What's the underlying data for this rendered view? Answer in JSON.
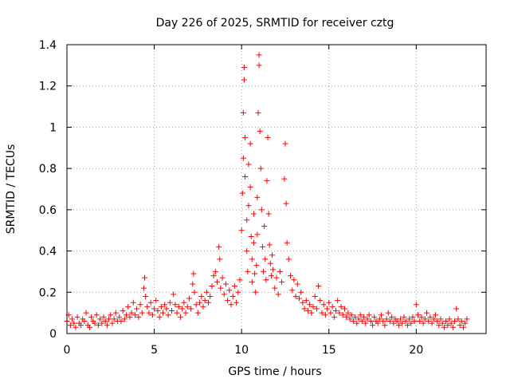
{
  "chart_data": {
    "type": "scatter",
    "title": "Day 226 of 2025, SRMTID for receiver cztg",
    "xlabel": "GPS time / hours",
    "ylabel": "SRMTID / TECUs",
    "xlim": [
      0,
      24
    ],
    "ylim": [
      0,
      1.4
    ],
    "xticks": [
      0,
      5,
      10,
      15,
      20
    ],
    "xtick_labels": [
      "0",
      "5",
      "10",
      "15",
      "20"
    ],
    "yticks": [
      0,
      0.2,
      0.4,
      0.6,
      0.8,
      1.0,
      1.2,
      1.4
    ],
    "ytick_labels": [
      "0",
      "0.2",
      "0.4",
      "0.6",
      "0.8",
      "1",
      "1.2",
      "1.4"
    ],
    "grid": true,
    "marker": "+",
    "color": "#ff0000",
    "series": [
      {
        "name": "SRMTID",
        "points": [
          [
            0.0,
            0.06
          ],
          [
            0.1,
            0.09
          ],
          [
            0.2,
            0.04
          ],
          [
            0.3,
            0.07
          ],
          [
            0.4,
            0.05
          ],
          [
            0.5,
            0.03
          ],
          [
            0.6,
            0.08
          ],
          [
            0.7,
            0.05
          ],
          [
            0.8,
            0.04
          ],
          [
            0.9,
            0.07
          ],
          [
            1.0,
            0.06
          ],
          [
            1.1,
            0.1
          ],
          [
            1.2,
            0.04
          ],
          [
            1.3,
            0.03
          ],
          [
            1.4,
            0.08
          ],
          [
            1.5,
            0.06
          ],
          [
            1.6,
            0.05
          ],
          [
            1.7,
            0.09
          ],
          [
            1.8,
            0.04
          ],
          [
            1.9,
            0.07
          ],
          [
            2.0,
            0.05
          ],
          [
            2.1,
            0.08
          ],
          [
            2.2,
            0.06
          ],
          [
            2.3,
            0.04
          ],
          [
            2.4,
            0.07
          ],
          [
            2.5,
            0.09
          ],
          [
            2.6,
            0.05
          ],
          [
            2.7,
            0.07
          ],
          [
            2.8,
            0.1
          ],
          [
            2.9,
            0.06
          ],
          [
            3.0,
            0.08
          ],
          [
            3.1,
            0.06
          ],
          [
            3.2,
            0.11
          ],
          [
            3.3,
            0.07
          ],
          [
            3.4,
            0.09
          ],
          [
            3.5,
            0.13
          ],
          [
            3.6,
            0.08
          ],
          [
            3.7,
            0.1
          ],
          [
            3.8,
            0.15
          ],
          [
            3.9,
            0.09
          ],
          [
            4.0,
            0.12
          ],
          [
            4.1,
            0.08
          ],
          [
            4.2,
            0.14
          ],
          [
            4.3,
            0.1
          ],
          [
            4.4,
            0.22
          ],
          [
            4.45,
            0.27
          ],
          [
            4.5,
            0.18
          ],
          [
            4.6,
            0.13
          ],
          [
            4.7,
            0.1
          ],
          [
            4.8,
            0.15
          ],
          [
            4.9,
            0.09
          ],
          [
            5.0,
            0.12
          ],
          [
            5.1,
            0.16
          ],
          [
            5.2,
            0.11
          ],
          [
            5.3,
            0.08
          ],
          [
            5.4,
            0.13
          ],
          [
            5.5,
            0.1
          ],
          [
            5.6,
            0.14
          ],
          [
            5.7,
            0.12
          ],
          [
            5.8,
            0.09
          ],
          [
            5.9,
            0.15
          ],
          [
            6.0,
            0.11
          ],
          [
            6.1,
            0.19
          ],
          [
            6.2,
            0.14
          ],
          [
            6.3,
            0.1
          ],
          [
            6.4,
            0.13
          ],
          [
            6.5,
            0.08
          ],
          [
            6.6,
            0.12
          ],
          [
            6.7,
            0.15
          ],
          [
            6.8,
            0.1
          ],
          [
            6.9,
            0.13
          ],
          [
            7.0,
            0.17
          ],
          [
            7.1,
            0.12
          ],
          [
            7.2,
            0.24
          ],
          [
            7.25,
            0.29
          ],
          [
            7.3,
            0.2
          ],
          [
            7.4,
            0.14
          ],
          [
            7.5,
            0.1
          ],
          [
            7.6,
            0.15
          ],
          [
            7.7,
            0.18
          ],
          [
            7.8,
            0.13
          ],
          [
            7.9,
            0.16
          ],
          [
            8.0,
            0.2
          ],
          [
            8.1,
            0.15
          ],
          [
            8.2,
            0.18
          ],
          [
            8.3,
            0.23
          ],
          [
            8.4,
            0.28
          ],
          [
            8.5,
            0.3
          ],
          [
            8.6,
            0.25
          ],
          [
            8.7,
            0.42
          ],
          [
            8.75,
            0.36
          ],
          [
            8.8,
            0.22
          ],
          [
            8.9,
            0.27
          ],
          [
            9.0,
            0.19
          ],
          [
            9.1,
            0.24
          ],
          [
            9.2,
            0.16
          ],
          [
            9.3,
            0.21
          ],
          [
            9.4,
            0.14
          ],
          [
            9.5,
            0.18
          ],
          [
            9.6,
            0.23
          ],
          [
            9.7,
            0.15
          ],
          [
            9.8,
            0.2
          ],
          [
            9.9,
            0.26
          ],
          [
            10.0,
            0.5
          ],
          [
            10.05,
            0.68
          ],
          [
            10.1,
            0.85
          ],
          [
            10.1,
            1.07
          ],
          [
            10.15,
            1.23
          ],
          [
            10.15,
            1.29
          ],
          [
            10.2,
            0.95
          ],
          [
            10.2,
            0.76
          ],
          [
            10.3,
            0.55
          ],
          [
            10.3,
            0.4
          ],
          [
            10.35,
            0.3
          ],
          [
            10.4,
            0.62
          ],
          [
            10.4,
            0.82
          ],
          [
            10.5,
            0.92
          ],
          [
            10.5,
            0.71
          ],
          [
            10.55,
            0.47
          ],
          [
            10.6,
            0.36
          ],
          [
            10.6,
            0.25
          ],
          [
            10.7,
            0.58
          ],
          [
            10.7,
            0.44
          ],
          [
            10.75,
            0.29
          ],
          [
            10.8,
            0.2
          ],
          [
            10.85,
            0.33
          ],
          [
            10.9,
            0.48
          ],
          [
            10.9,
            0.66
          ],
          [
            10.95,
            1.07
          ],
          [
            11.0,
            1.3
          ],
          [
            11.0,
            1.35
          ],
          [
            11.05,
            0.98
          ],
          [
            11.1,
            0.8
          ],
          [
            11.15,
            0.6
          ],
          [
            11.2,
            0.42
          ],
          [
            11.25,
            0.3
          ],
          [
            11.3,
            0.52
          ],
          [
            11.35,
            0.36
          ],
          [
            11.4,
            0.26
          ],
          [
            11.45,
            0.74
          ],
          [
            11.5,
            0.95
          ],
          [
            11.55,
            0.58
          ],
          [
            11.6,
            0.43
          ],
          [
            11.65,
            0.34
          ],
          [
            11.7,
            0.28
          ],
          [
            11.75,
            0.38
          ],
          [
            11.8,
            0.31
          ],
          [
            11.9,
            0.22
          ],
          [
            12.0,
            0.27
          ],
          [
            12.1,
            0.19
          ],
          [
            12.2,
            0.3
          ],
          [
            12.3,
            0.25
          ],
          [
            12.45,
            0.75
          ],
          [
            12.5,
            0.92
          ],
          [
            12.55,
            0.63
          ],
          [
            12.6,
            0.44
          ],
          [
            12.7,
            0.36
          ],
          [
            12.8,
            0.28
          ],
          [
            12.9,
            0.21
          ],
          [
            13.0,
            0.26
          ],
          [
            13.1,
            0.18
          ],
          [
            13.2,
            0.24
          ],
          [
            13.3,
            0.17
          ],
          [
            13.4,
            0.2
          ],
          [
            13.5,
            0.15
          ],
          [
            13.6,
            0.12
          ],
          [
            13.7,
            0.16
          ],
          [
            13.8,
            0.11
          ],
          [
            13.9,
            0.14
          ],
          [
            14.0,
            0.1
          ],
          [
            14.1,
            0.13
          ],
          [
            14.2,
            0.18
          ],
          [
            14.3,
            0.12
          ],
          [
            14.4,
            0.23
          ],
          [
            14.5,
            0.16
          ],
          [
            14.6,
            0.1
          ],
          [
            14.7,
            0.14
          ],
          [
            14.8,
            0.09
          ],
          [
            14.9,
            0.12
          ],
          [
            15.0,
            0.15
          ],
          [
            15.1,
            0.1
          ],
          [
            15.2,
            0.13
          ],
          [
            15.3,
            0.08
          ],
          [
            15.4,
            0.11
          ],
          [
            15.5,
            0.16
          ],
          [
            15.6,
            0.1
          ],
          [
            15.7,
            0.13
          ],
          [
            15.8,
            0.09
          ],
          [
            15.9,
            0.12
          ],
          [
            16.0,
            0.08
          ],
          [
            16.1,
            0.1
          ],
          [
            16.2,
            0.07
          ],
          [
            16.3,
            0.09
          ],
          [
            16.4,
            0.06
          ],
          [
            16.5,
            0.08
          ],
          [
            16.6,
            0.05
          ],
          [
            16.7,
            0.07
          ],
          [
            16.8,
            0.09
          ],
          [
            16.9,
            0.06
          ],
          [
            17.0,
            0.08
          ],
          [
            17.1,
            0.05
          ],
          [
            17.2,
            0.07
          ],
          [
            17.3,
            0.09
          ],
          [
            17.4,
            0.06
          ],
          [
            17.5,
            0.04
          ],
          [
            17.6,
            0.08
          ],
          [
            17.7,
            0.06
          ],
          [
            17.8,
            0.05
          ],
          [
            17.9,
            0.07
          ],
          [
            18.0,
            0.09
          ],
          [
            18.1,
            0.06
          ],
          [
            18.2,
            0.04
          ],
          [
            18.3,
            0.07
          ],
          [
            18.4,
            0.1
          ],
          [
            18.5,
            0.06
          ],
          [
            18.6,
            0.08
          ],
          [
            18.7,
            0.05
          ],
          [
            18.8,
            0.07
          ],
          [
            18.9,
            0.06
          ],
          [
            19.0,
            0.04
          ],
          [
            19.1,
            0.07
          ],
          [
            19.2,
            0.05
          ],
          [
            19.3,
            0.08
          ],
          [
            19.4,
            0.06
          ],
          [
            19.5,
            0.04
          ],
          [
            19.6,
            0.07
          ],
          [
            19.7,
            0.05
          ],
          [
            19.8,
            0.08
          ],
          [
            19.9,
            0.06
          ],
          [
            20.0,
            0.14
          ],
          [
            20.1,
            0.09
          ],
          [
            20.2,
            0.06
          ],
          [
            20.3,
            0.08
          ],
          [
            20.4,
            0.05
          ],
          [
            20.5,
            0.07
          ],
          [
            20.6,
            0.1
          ],
          [
            20.7,
            0.06
          ],
          [
            20.8,
            0.08
          ],
          [
            20.9,
            0.05
          ],
          [
            21.0,
            0.07
          ],
          [
            21.1,
            0.09
          ],
          [
            21.2,
            0.06
          ],
          [
            21.3,
            0.04
          ],
          [
            21.4,
            0.07
          ],
          [
            21.5,
            0.05
          ],
          [
            21.6,
            0.03
          ],
          [
            21.7,
            0.06
          ],
          [
            21.8,
            0.04
          ],
          [
            21.9,
            0.07
          ],
          [
            22.0,
            0.05
          ],
          [
            22.1,
            0.03
          ],
          [
            22.2,
            0.06
          ],
          [
            22.3,
            0.12
          ],
          [
            22.4,
            0.07
          ],
          [
            22.5,
            0.04
          ],
          [
            22.6,
            0.06
          ],
          [
            22.7,
            0.03
          ],
          [
            22.8,
            0.05
          ],
          [
            22.9,
            0.07
          ]
        ]
      }
    ]
  }
}
